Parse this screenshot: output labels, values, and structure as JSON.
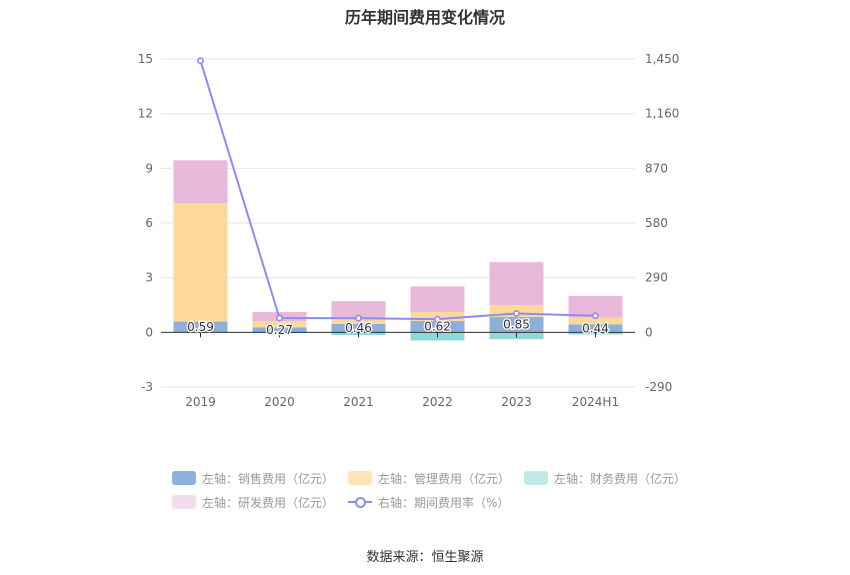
{
  "title": "历年期间费用变化情况",
  "source": "数据来源：恒生聚源",
  "chart_data": {
    "type": "bar",
    "stacked": true,
    "categories": [
      "2019",
      "2020",
      "2021",
      "2022",
      "2023",
      "2024H1"
    ],
    "left_axis": {
      "min": -3,
      "max": 15,
      "ticks": [
        "-3",
        "0",
        "3",
        "6",
        "9",
        "12",
        "15"
      ]
    },
    "right_axis": {
      "min": -290,
      "max": 1450,
      "ticks": [
        "-290",
        "0",
        "290",
        "580",
        "870",
        "1,160",
        "1,450"
      ]
    },
    "grid": true,
    "legend_position": "bottom",
    "series": [
      {
        "name": "左轴：销售费用（亿元）",
        "axis": "left",
        "color": "#8eaedb",
        "values": [
          0.59,
          0.27,
          0.46,
          0.62,
          0.85,
          0.44
        ],
        "labels": [
          "0.59",
          "0.27",
          "0.46",
          "0.62",
          "0.85",
          "0.44"
        ]
      },
      {
        "name": "左轴：管理费用（亿元）",
        "axis": "left",
        "color": "#fdd89b",
        "values": [
          6.5,
          0.35,
          0.3,
          0.5,
          0.65,
          0.36
        ]
      },
      {
        "name": "左轴：财务费用（亿元）",
        "axis": "left",
        "color": "#8fd8d8",
        "values": [
          0.0,
          -0.05,
          -0.15,
          -0.45,
          -0.38,
          -0.12
        ]
      },
      {
        "name": "左轴：研发费用（亿元）",
        "axis": "left",
        "color": "#e8b9da",
        "values": [
          2.35,
          0.5,
          0.95,
          1.4,
          2.35,
          1.2
        ]
      },
      {
        "name": "右轴：期间费用率（%）",
        "axis": "right",
        "type": "line",
        "color": "#8c8cf0",
        "values": [
          1441,
          76,
          75,
          70,
          100,
          88
        ]
      }
    ]
  },
  "legend": [
    {
      "label": "左轴：销售费用（亿元）",
      "kind": "box",
      "color": "#8eaedb"
    },
    {
      "label": "左轴：管理费用（亿元）",
      "kind": "box",
      "color": "#fde3b8"
    },
    {
      "label": "左轴：财务费用（亿元）",
      "kind": "box",
      "color": "#c2e9ea"
    },
    {
      "label": "左轴：研发费用（亿元）",
      "kind": "box",
      "color": "#f2dcee"
    },
    {
      "label": "右轴：期间费用率（%）",
      "kind": "line",
      "color": "#8c8cf0"
    }
  ]
}
